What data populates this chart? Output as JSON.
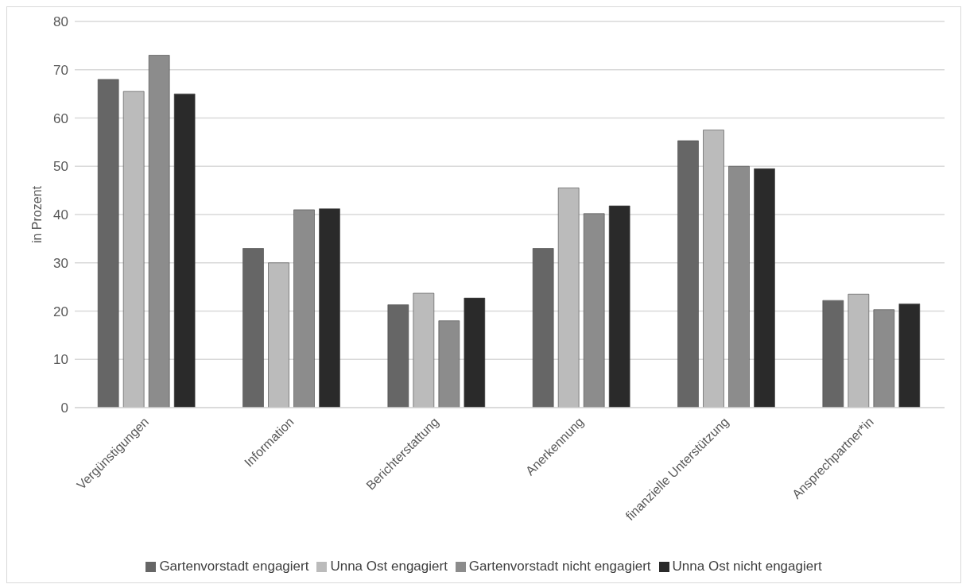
{
  "chart_data": {
    "type": "bar",
    "ylabel": "in Prozent",
    "categories": [
      "Vergünstigungen",
      "Information",
      "Berichterstattung",
      "Anerkennung",
      "finanzielle Unterstützung",
      "Ansprechpartner*in"
    ],
    "series": [
      {
        "name": "Gartenvorstadt engagiert",
        "color": "#666666",
        "values": [
          68,
          33,
          21.3,
          33,
          55.3,
          22.2
        ]
      },
      {
        "name": "Unna Ost engagiert",
        "color": "#bbbbbb",
        "values": [
          65.5,
          30,
          23.7,
          45.5,
          57.5,
          23.5
        ]
      },
      {
        "name": "Gartenvorstadt nicht engagiert",
        "color": "#8c8c8c",
        "values": [
          73,
          41,
          18,
          40.2,
          50,
          20.3
        ]
      },
      {
        "name": "Unna Ost nicht engagiert",
        "color": "#2a2a2a",
        "values": [
          65,
          41.2,
          22.7,
          41.8,
          49.5,
          21.5
        ]
      }
    ],
    "ylim": [
      0,
      80
    ],
    "yticks": [
      0,
      10,
      20,
      30,
      40,
      50,
      60,
      70,
      80
    ],
    "grid": "y",
    "legend": "bottom"
  }
}
